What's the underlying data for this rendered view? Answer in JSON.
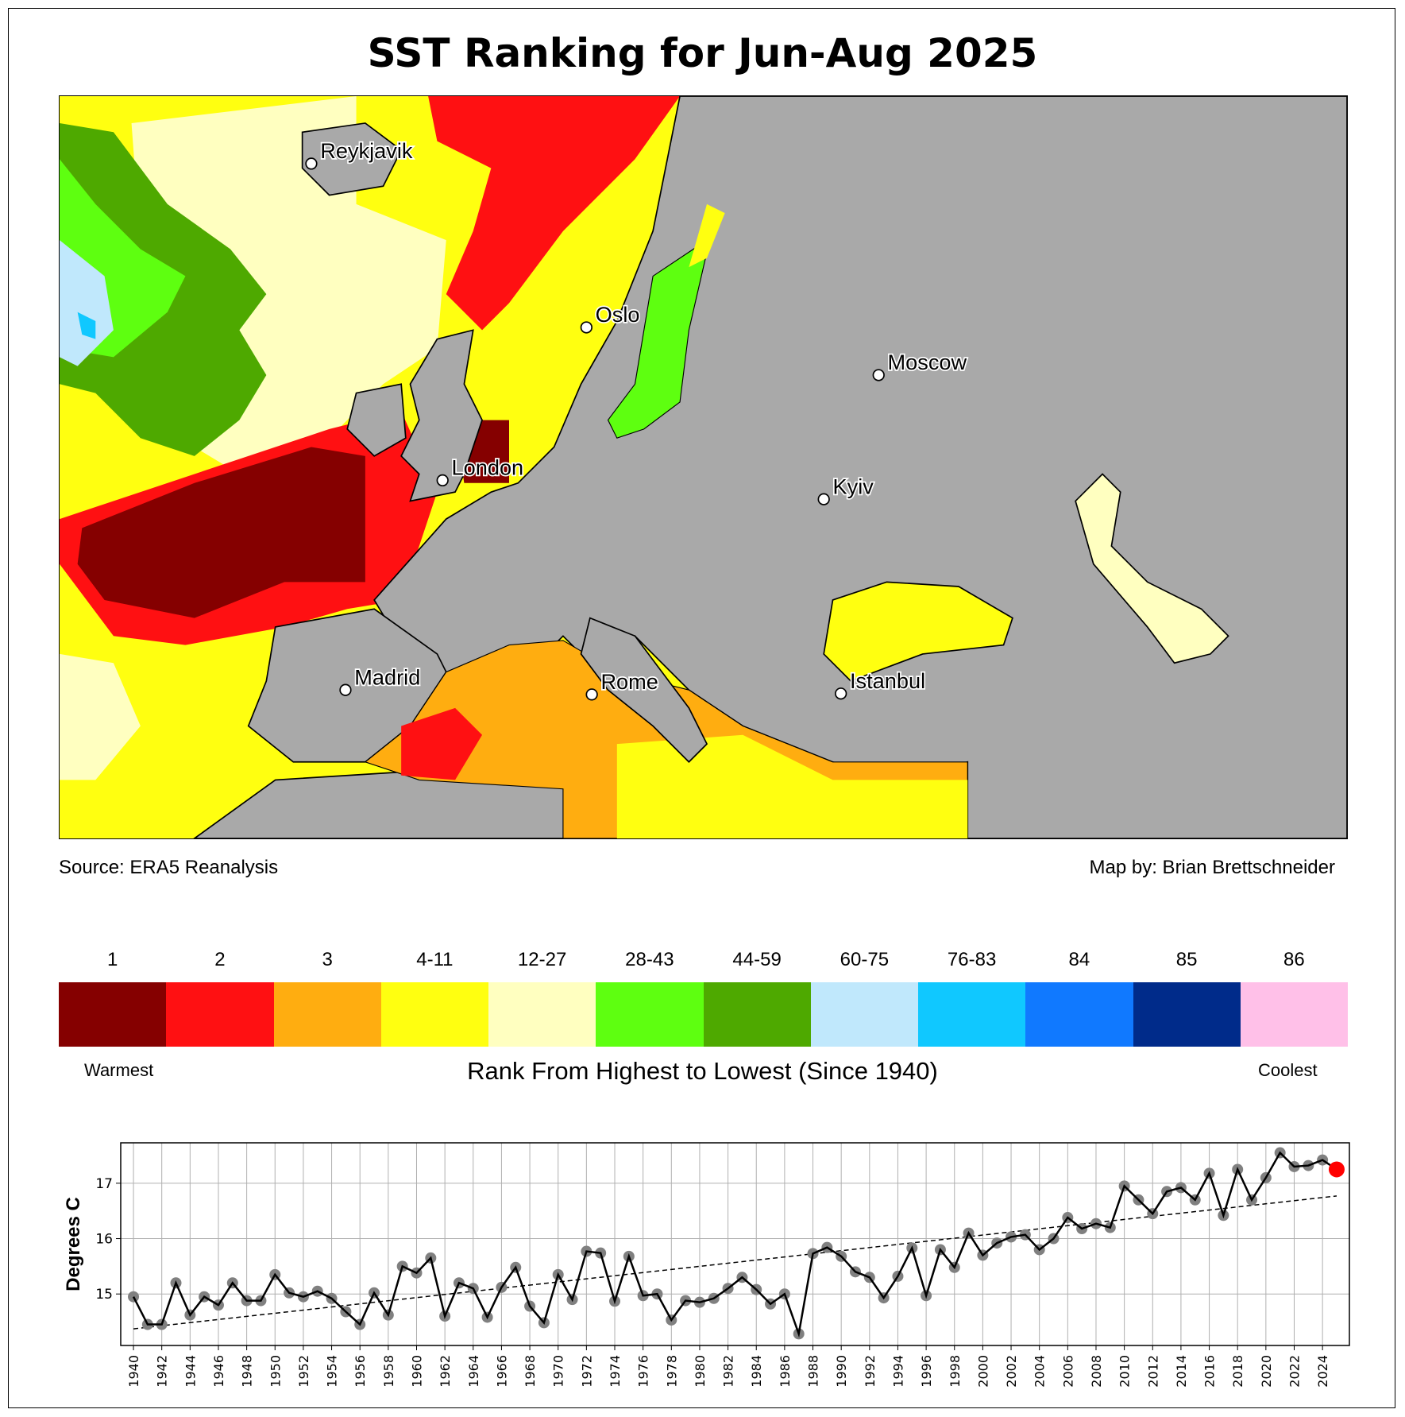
{
  "title": "SST Ranking for Jun-Aug 2025",
  "source": "Source: ERA5 Reanalysis",
  "credit": "Map by: Brian Brettschneider",
  "cities": [
    {
      "name": "Reykjavik"
    },
    {
      "name": "Oslo"
    },
    {
      "name": "Moscow"
    },
    {
      "name": "London"
    },
    {
      "name": "Kyiv"
    },
    {
      "name": "Madrid"
    },
    {
      "name": "Rome"
    },
    {
      "name": "Istanbul"
    }
  ],
  "colors": {
    "land": "#a9a9a9"
  },
  "legend": {
    "title": "Rank From Highest to Lowest (Since 1940)",
    "warmest": "Warmest",
    "coolest": "Coolest",
    "bins": [
      {
        "label": "1",
        "color": "#850000"
      },
      {
        "label": "2",
        "color": "#ff1012"
      },
      {
        "label": "3",
        "color": "#ffad10"
      },
      {
        "label": "4-11",
        "color": "#ffff10"
      },
      {
        "label": "12-27",
        "color": "#ffffc0"
      },
      {
        "label": "28-43",
        "color": "#5eff10"
      },
      {
        "label": "44-59",
        "color": "#4ea900"
      },
      {
        "label": "60-75",
        "color": "#c0e8fc"
      },
      {
        "label": "76-83",
        "color": "#10c8ff"
      },
      {
        "label": "84",
        "color": "#1079ff"
      },
      {
        "label": "85",
        "color": "#002b8a"
      },
      {
        "label": "86",
        "color": "#ffc0e8"
      }
    ]
  },
  "chart_data": {
    "type": "line",
    "ylabel": "Degrees C",
    "xlabel": "",
    "ylim": [
      14.07,
      17.73
    ],
    "xlim": [
      1939.1,
      2025.9
    ],
    "yticks": [
      15,
      16,
      17
    ],
    "xticks": [
      1940,
      1942,
      1944,
      1946,
      1948,
      1950,
      1952,
      1954,
      1956,
      1958,
      1960,
      1962,
      1964,
      1966,
      1968,
      1970,
      1972,
      1974,
      1976,
      1978,
      1980,
      1982,
      1984,
      1986,
      1988,
      1990,
      1992,
      1994,
      1996,
      1998,
      2000,
      2002,
      2004,
      2006,
      2008,
      2010,
      2012,
      2014,
      2016,
      2018,
      2020,
      2022,
      2024
    ],
    "grid": true,
    "x_start": 1940,
    "values": [
      14.95,
      14.45,
      14.45,
      15.2,
      14.62,
      14.95,
      14.8,
      15.2,
      14.88,
      14.88,
      15.35,
      15.02,
      14.95,
      15.05,
      14.92,
      14.68,
      14.45,
      15.02,
      14.62,
      15.5,
      15.38,
      15.65,
      14.6,
      15.2,
      15.1,
      14.58,
      15.12,
      15.48,
      14.78,
      14.48,
      15.35,
      14.9,
      15.77,
      15.74,
      14.87,
      15.68,
      14.97,
      15.0,
      14.53,
      14.88,
      14.85,
      14.92,
      15.1,
      15.3,
      15.08,
      14.82,
      15.0,
      14.28,
      15.73,
      15.84,
      15.68,
      15.4,
      15.3,
      14.93,
      15.32,
      15.83,
      14.97,
      15.8,
      15.48,
      16.1,
      15.7,
      15.92,
      16.03,
      16.07,
      15.8,
      16.0,
      16.38,
      16.18,
      16.27,
      16.2,
      16.95,
      16.7,
      16.45,
      16.85,
      16.92,
      16.7,
      17.18,
      16.42,
      17.25,
      16.7,
      17.1,
      17.55,
      17.3,
      17.32,
      17.42,
      17.25
    ],
    "highlight": {
      "year": 2025,
      "color": "#ff0000"
    },
    "trend": {
      "start": [
        1940,
        14.37
      ],
      "end": [
        2025,
        16.77
      ],
      "style": "dashed"
    }
  }
}
